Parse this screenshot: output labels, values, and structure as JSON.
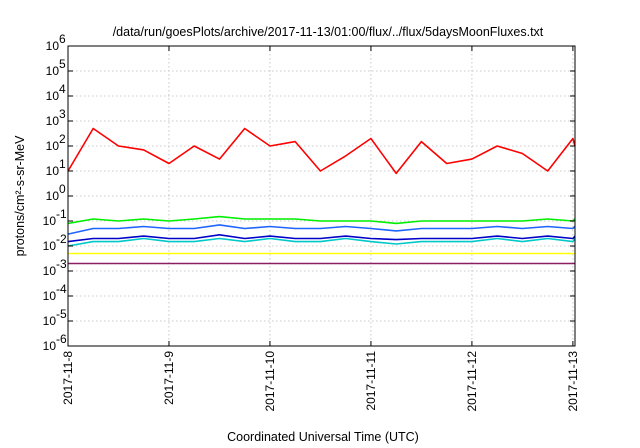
{
  "chart_data": {
    "type": "line",
    "title": "/data/run/goesPlots/archive/2017-11-13/01:00/flux/../flux/5daysMoonFluxes.txt",
    "xlabel": "Coordinated Universal Time (UTC)",
    "ylabel": "protons/cm²-s-sr-MeV",
    "yscale": "log",
    "ylim": [
      1e-06,
      1000000.0
    ],
    "xlim": [
      "2017-11-08",
      "2017-11-13 00:30"
    ],
    "grid": true,
    "y_ticks": [
      {
        "base": "10",
        "exp": "-6"
      },
      {
        "base": "10",
        "exp": "-5"
      },
      {
        "base": "10",
        "exp": "-4"
      },
      {
        "base": "10",
        "exp": "-3"
      },
      {
        "base": "10",
        "exp": "-2"
      },
      {
        "base": "10",
        "exp": "-1"
      },
      {
        "base": "10",
        "exp": "0"
      },
      {
        "base": "10",
        "exp": "1"
      },
      {
        "base": "10",
        "exp": "2"
      },
      {
        "base": "10",
        "exp": "3"
      },
      {
        "base": "10",
        "exp": "4"
      },
      {
        "base": "10",
        "exp": "5"
      },
      {
        "base": "10",
        "exp": "6"
      }
    ],
    "x_ticks": [
      "2017-11-8",
      "2017-11-9",
      "2017-11-10",
      "2017-11-11",
      "2017-11-12",
      "2017-11-13"
    ],
    "x": [
      "2017-11-08 00:00",
      "2017-11-08 06:00",
      "2017-11-08 12:00",
      "2017-11-08 18:00",
      "2017-11-09 00:00",
      "2017-11-09 06:00",
      "2017-11-09 12:00",
      "2017-11-09 18:00",
      "2017-11-10 00:00",
      "2017-11-10 06:00",
      "2017-11-10 12:00",
      "2017-11-10 18:00",
      "2017-11-11 00:00",
      "2017-11-11 06:00",
      "2017-11-11 12:00",
      "2017-11-11 18:00",
      "2017-11-12 00:00",
      "2017-11-12 06:00",
      "2017-11-12 12:00",
      "2017-11-12 18:00",
      "2017-11-13 00:00",
      "2017-11-13 00:30"
    ],
    "series": [
      {
        "color": "#ff0000",
        "values": [
          10,
          500,
          100,
          70,
          20,
          100,
          30,
          500,
          100,
          150,
          10,
          40,
          200,
          8,
          150,
          20,
          30,
          100,
          50,
          10,
          200,
          100
        ]
      },
      {
        "color": "#00ee00",
        "values": [
          0.08,
          0.12,
          0.1,
          0.12,
          0.1,
          0.12,
          0.15,
          0.12,
          0.12,
          0.12,
          0.1,
          0.1,
          0.1,
          0.08,
          0.1,
          0.1,
          0.1,
          0.1,
          0.1,
          0.12,
          0.1,
          0.12
        ]
      },
      {
        "color": "#1e64ff",
        "values": [
          0.03,
          0.05,
          0.05,
          0.06,
          0.05,
          0.05,
          0.07,
          0.05,
          0.06,
          0.05,
          0.05,
          0.06,
          0.05,
          0.04,
          0.05,
          0.05,
          0.05,
          0.06,
          0.05,
          0.06,
          0.05,
          0.06
        ]
      },
      {
        "color": "#00c8c8",
        "values": [
          0.01,
          0.015,
          0.015,
          0.02,
          0.015,
          0.015,
          0.02,
          0.015,
          0.02,
          0.015,
          0.015,
          0.02,
          0.015,
          0.012,
          0.015,
          0.015,
          0.015,
          0.02,
          0.015,
          0.02,
          0.015,
          0.02
        ]
      },
      {
        "color": "#0000c8",
        "values": [
          0.015,
          0.02,
          0.02,
          0.025,
          0.02,
          0.02,
          0.028,
          0.02,
          0.025,
          0.02,
          0.02,
          0.025,
          0.02,
          0.018,
          0.02,
          0.02,
          0.02,
          0.025,
          0.02,
          0.025,
          0.02,
          0.025
        ]
      },
      {
        "color": "#ffff00",
        "values": [
          0.005,
          0.005,
          0.005,
          0.005,
          0.005,
          0.005,
          0.005,
          0.005,
          0.005,
          0.005,
          0.005,
          0.005,
          0.005,
          0.005,
          0.005,
          0.005,
          0.005,
          0.005,
          0.005,
          0.005,
          0.005,
          0.005
        ]
      },
      {
        "color": "#8b1e64",
        "values": [
          0.002,
          0.002,
          0.002,
          0.002,
          0.002,
          0.002,
          0.002,
          0.002,
          0.002,
          0.002,
          0.002,
          0.002,
          0.002,
          0.002,
          0.002,
          0.002,
          0.002,
          0.002,
          0.002,
          0.002,
          0.002,
          0.002
        ]
      }
    ]
  }
}
